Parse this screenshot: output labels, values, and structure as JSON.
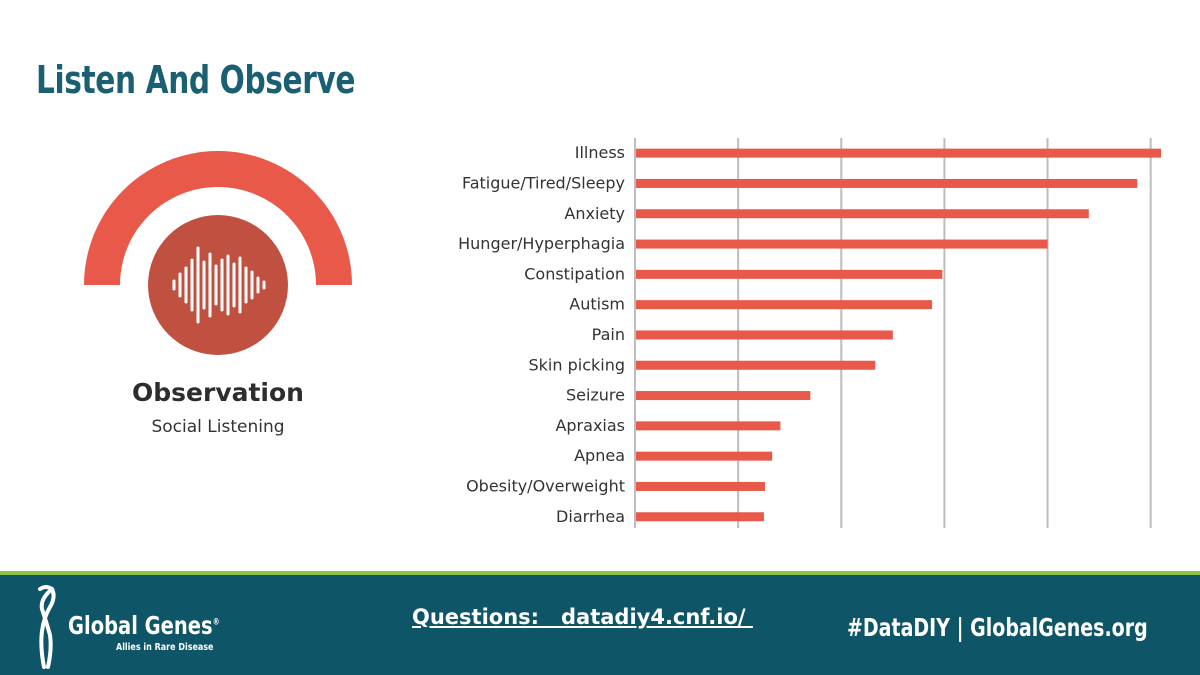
{
  "slide": {
    "title": "Listen And Observe"
  },
  "observation": {
    "heading": "Observation",
    "subheading": "Social Listening",
    "icon": "sound-wave-icon",
    "colors": {
      "arc": "#e8594a",
      "circle": "#c0503f"
    }
  },
  "chart_data": {
    "type": "bar",
    "orientation": "horizontal",
    "categories": [
      "Illness",
      "Fatigue/Tired/Sleepy",
      "Anxiety",
      "Hunger/Hyperphagia",
      "Constipation",
      "Autism",
      "Pain",
      "Skin picking",
      "Seizure",
      "Apraxias",
      "Apnea",
      "Obesity/Overweight",
      "Diarrhea"
    ],
    "values": [
      5.1,
      4.87,
      4.4,
      4.0,
      2.98,
      2.88,
      2.5,
      2.33,
      1.7,
      1.41,
      1.33,
      1.26,
      1.25
    ],
    "xlim": [
      0,
      5.1
    ],
    "gridlines": [
      1,
      2,
      3,
      4,
      5
    ],
    "tick_labels_visible": false,
    "title": "",
    "xlabel": "",
    "ylabel": "",
    "bar_color": "#e8594a",
    "grid_color": "#bdbdbd"
  },
  "footer": {
    "brand": "Global Genes",
    "trademark": "®",
    "tagline": "Allies in Rare Disease",
    "questions_label": "Questions:",
    "questions_link": "datadiy4.cnf.io/",
    "hashtag": "#DataDIY | GlobalGenes.org",
    "colors": {
      "background": "#0f5568",
      "accent_line": "#8bc34a"
    }
  }
}
